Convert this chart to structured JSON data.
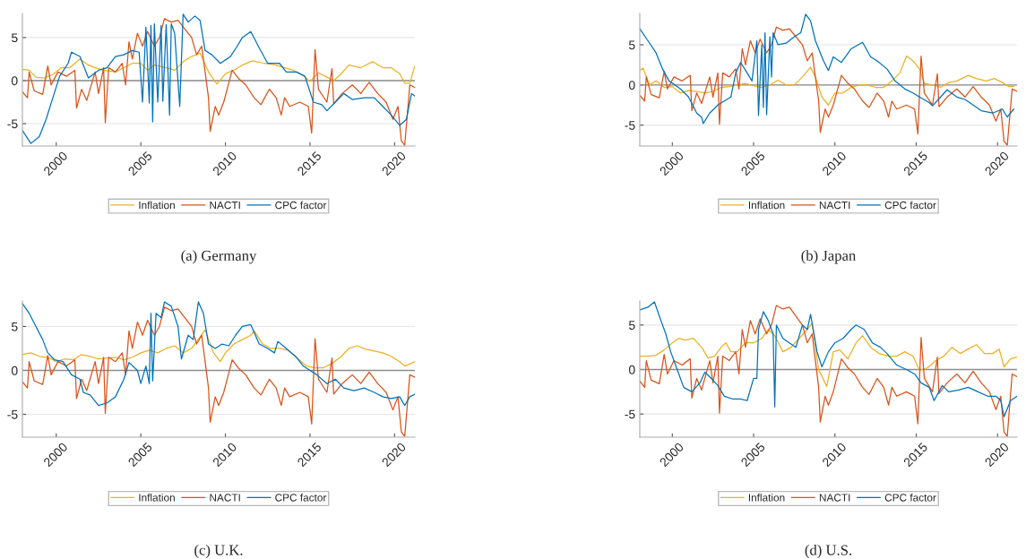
{
  "chart_data": [
    {
      "type": "line",
      "title": "(a) Germany",
      "xlim": [
        1998,
        2021.2
      ],
      "ylim": [
        -7.6,
        7.8
      ],
      "xticks": [
        2000,
        2005,
        2010,
        2015,
        2020
      ],
      "yticks": [
        -5,
        0,
        5
      ],
      "grid": "y",
      "legend": "bottom",
      "ref_lines": [
        {
          "axis": "y",
          "value": 0,
          "color": "#8c8c8c"
        }
      ],
      "series": [
        {
          "name": "Inflation",
          "color": "#edb120",
          "x": [
            1998,
            1998.4,
            1998.8,
            1999.3,
            1999.8,
            2000.3,
            2000.8,
            2001.4,
            2001.9,
            2002.3,
            2002.8,
            2003.5,
            2004.0,
            2004.5,
            2005.0,
            2005.4,
            2005.8,
            2006.5,
            2007.0,
            2007.5,
            2008.0,
            2008.5,
            2009.0,
            2009.5,
            2010.0,
            2010.5,
            2011.0,
            2011.6,
            2012.3,
            2013.0,
            2013.5,
            2014.0,
            2014.6,
            2015.0,
            2015.5,
            2016.0,
            2016.4,
            2016.8,
            2017.3,
            2018.0,
            2018.7,
            2019.3,
            2019.8,
            2020.3,
            2020.6,
            2020.9,
            2021.2
          ],
          "values": [
            1.3,
            1.2,
            0.4,
            0.3,
            0.7,
            1.5,
            1.5,
            2.5,
            1.8,
            1.5,
            1.2,
            1.0,
            1.5,
            2.0,
            2.0,
            1.2,
            1.8,
            1.5,
            1.2,
            2.2,
            2.8,
            3.2,
            1.0,
            -0.4,
            0.8,
            1.2,
            1.8,
            2.3,
            2.0,
            1.8,
            1.5,
            1.2,
            0.6,
            -0.1,
            0.9,
            0.4,
            0.0,
            0.7,
            1.8,
            1.5,
            2.2,
            1.5,
            1.5,
            0.8,
            -0.3,
            -0.3,
            1.7
          ]
        },
        {
          "name": "NACTI",
          "color": "#d95319",
          "x": [
            1998,
            1998.3,
            1998.4,
            1998.7,
            1999.2,
            1999.5,
            1999.7,
            2000.1,
            2000.6,
            2001.1,
            2001.2,
            2001.5,
            2001.8,
            2002.3,
            2002.5,
            2002.8,
            2002.9,
            2003.1,
            2003.5,
            2003.9,
            2004.1,
            2004.3,
            2004.5,
            2004.8,
            2005.1,
            2005.4,
            2005.8,
            2006.1,
            2006.4,
            2006.8,
            2007.2,
            2007.6,
            2008.0,
            2008.3,
            2008.6,
            2008.8,
            2009.0,
            2009.1,
            2009.4,
            2009.6,
            2009.9,
            2010.4,
            2010.8,
            2011.2,
            2011.7,
            2012.1,
            2012.6,
            2013.0,
            2013.3,
            2013.5,
            2013.8,
            2014.4,
            2014.9,
            2015.1,
            2015.3,
            2015.5,
            2016.0,
            2016.3,
            2016.4,
            2016.9,
            2017.5,
            2018.0,
            2018.5,
            2019.0,
            2019.5,
            2019.9,
            2020.2,
            2020.4,
            2020.6,
            2020.9,
            2021.2
          ],
          "values": [
            -1.3,
            -2.0,
            1.0,
            -1.2,
            -1.6,
            1.7,
            -0.5,
            1.0,
            0.5,
            1.2,
            -3.2,
            -1.0,
            -2.3,
            1.0,
            -1.5,
            1.5,
            -4.9,
            1.5,
            1.0,
            2.0,
            -0.5,
            4.5,
            2.5,
            5.5,
            4.0,
            5.7,
            4.0,
            5.0,
            7.2,
            6.8,
            7.0,
            6.0,
            5.0,
            3.0,
            4.0,
            1.0,
            -2.0,
            -5.9,
            -3.0,
            -4.0,
            -2.5,
            1.2,
            0.2,
            -0.5,
            -2.0,
            -2.8,
            -1.0,
            -2.0,
            -4.0,
            -2.0,
            -3.0,
            -2.5,
            -3.0,
            -6.1,
            3.6,
            -1.0,
            -2.5,
            1.4,
            -2.7,
            -1.5,
            -0.5,
            -1.5,
            -0.2,
            -1.5,
            -2.5,
            -4.5,
            -3.0,
            -7.0,
            -7.5,
            -0.5,
            -0.8
          ]
        },
        {
          "name": "CPC factor",
          "color": "#0072bd",
          "x": [
            1998,
            1998.5,
            1999.0,
            1999.4,
            1999.8,
            2000.2,
            2000.7,
            2000.9,
            2001.4,
            2001.9,
            2002.5,
            2003.0,
            2003.5,
            2004.0,
            2004.5,
            2004.9,
            2005.1,
            2005.3,
            2005.5,
            2005.6,
            2005.7,
            2005.8,
            2006.0,
            2006.2,
            2006.3,
            2006.5,
            2006.7,
            2006.8,
            2007.0,
            2007.3,
            2007.5,
            2007.8,
            2008.2,
            2008.5,
            2008.8,
            2009.2,
            2009.7,
            2010.3,
            2010.7,
            2011.0,
            2011.5,
            2012.0,
            2012.5,
            2013.2,
            2013.6,
            2014.2,
            2014.7,
            2015.2,
            2015.7,
            2016.0,
            2016.5,
            2017.0,
            2017.5,
            2018.2,
            2018.8,
            2019.3,
            2019.8,
            2020.3,
            2020.7,
            2021.0,
            2021.2
          ],
          "values": [
            -5.8,
            -7.3,
            -6.5,
            -4.5,
            -2.0,
            0.5,
            2.0,
            3.3,
            2.8,
            0.3,
            1.2,
            1.5,
            2.8,
            3.0,
            3.5,
            3.3,
            -2.5,
            6.2,
            -2.6,
            6.4,
            -4.8,
            6.6,
            -2.5,
            6.4,
            -2.4,
            6.5,
            -4.0,
            6.6,
            5.5,
            -3.0,
            7.7,
            6.8,
            7.5,
            7.0,
            3.5,
            3.0,
            2.0,
            2.8,
            4.0,
            5.0,
            5.7,
            3.8,
            2.0,
            2.0,
            1.0,
            1.0,
            0.5,
            -2.5,
            -2.8,
            -3.5,
            -2.5,
            -1.5,
            -2.2,
            -2.0,
            -2.0,
            -3.0,
            -4.0,
            -5.2,
            -4.5,
            -1.5,
            -1.8
          ]
        }
      ]
    },
    {
      "type": "line",
      "title": "(b) Japan",
      "xlim": [
        1998,
        2021.2
      ],
      "ylim": [
        -7.6,
        8.9
      ],
      "xticks": [
        2000,
        2005,
        2010,
        2015,
        2020
      ],
      "yticks": [
        -5,
        0,
        5
      ],
      "grid": "y",
      "legend": "bottom",
      "ref_lines": [
        {
          "axis": "y",
          "value": 0,
          "color": "#8c8c8c"
        }
      ],
      "series": [
        {
          "name": "Inflation",
          "color": "#edb120",
          "x": [
            1998,
            1998.2,
            1998.6,
            1999.0,
            1999.5,
            2000.0,
            2000.5,
            2001.0,
            2001.5,
            2002.0,
            2002.5,
            2003.0,
            2003.5,
            2004.0,
            2004.5,
            2005.0,
            2005.5,
            2006.0,
            2006.5,
            2007.0,
            2007.5,
            2008.0,
            2008.5,
            2008.8,
            2009.2,
            2009.6,
            2010.0,
            2010.5,
            2011.0,
            2011.5,
            2012.0,
            2012.5,
            2013.0,
            2013.5,
            2014.0,
            2014.4,
            2014.8,
            2015.2,
            2015.5,
            2016.0,
            2016.5,
            2017.0,
            2017.5,
            2018.2,
            2018.7,
            2019.3,
            2019.8,
            2020.3,
            2020.7,
            2021.0
          ],
          "values": [
            1.8,
            2.1,
            0.0,
            0.5,
            -0.3,
            -0.2,
            -1.0,
            -0.7,
            -0.8,
            -1.0,
            -0.8,
            -0.3,
            -0.2,
            0.0,
            0.2,
            -0.1,
            -0.3,
            0.0,
            0.6,
            0.0,
            0.0,
            1.0,
            2.2,
            1.0,
            -1.5,
            -2.5,
            -1.0,
            -1.0,
            -0.3,
            0.0,
            0.0,
            -0.3,
            -0.3,
            0.5,
            1.5,
            3.6,
            3.0,
            2.0,
            0.2,
            0.0,
            -0.3,
            0.3,
            0.5,
            1.2,
            0.8,
            0.5,
            0.8,
            0.3,
            -0.2,
            -0.2
          ]
        },
        {
          "name": "NACTI",
          "color": "#d95319",
          "x": [
            1998,
            1998.3,
            1998.4,
            1998.7,
            1999.2,
            1999.5,
            1999.7,
            2000.1,
            2000.6,
            2001.1,
            2001.2,
            2001.5,
            2001.8,
            2002.3,
            2002.5,
            2002.8,
            2002.9,
            2003.1,
            2003.5,
            2003.9,
            2004.1,
            2004.3,
            2004.5,
            2004.8,
            2005.1,
            2005.4,
            2005.8,
            2006.1,
            2006.4,
            2006.8,
            2007.2,
            2007.6,
            2008.0,
            2008.3,
            2008.6,
            2008.8,
            2009.0,
            2009.1,
            2009.4,
            2009.6,
            2009.9,
            2010.4,
            2010.8,
            2011.2,
            2011.7,
            2012.1,
            2012.6,
            2013.0,
            2013.3,
            2013.5,
            2013.8,
            2014.4,
            2014.9,
            2015.1,
            2015.3,
            2015.5,
            2016.0,
            2016.3,
            2016.4,
            2016.9,
            2017.5,
            2018.0,
            2018.5,
            2019.0,
            2019.5,
            2019.9,
            2020.2,
            2020.4,
            2020.6,
            2020.9,
            2021.2
          ],
          "values": [
            -1.3,
            -2.0,
            1.0,
            -1.2,
            -1.6,
            1.7,
            -0.5,
            1.0,
            0.5,
            1.2,
            -3.2,
            -1.0,
            -2.3,
            1.0,
            -1.5,
            1.5,
            -4.9,
            1.5,
            1.0,
            2.0,
            -0.5,
            4.5,
            2.5,
            5.5,
            4.0,
            5.7,
            4.0,
            5.0,
            7.2,
            6.8,
            7.0,
            6.0,
            5.0,
            3.0,
            4.0,
            1.0,
            -2.0,
            -5.9,
            -3.0,
            -4.0,
            -2.5,
            1.2,
            0.2,
            -0.5,
            -2.0,
            -2.8,
            -1.0,
            -2.0,
            -4.0,
            -2.0,
            -3.0,
            -2.5,
            -3.0,
            -6.1,
            3.6,
            -1.0,
            -2.5,
            1.4,
            -2.7,
            -1.5,
            -0.5,
            -1.5,
            -0.2,
            -1.5,
            -2.5,
            -4.5,
            -3.0,
            -7.0,
            -7.5,
            -0.5,
            -0.8
          ]
        },
        {
          "name": "CPC factor",
          "color": "#0072bd",
          "x": [
            1998,
            1998.5,
            1999.0,
            1999.4,
            1999.8,
            2000.5,
            2001.0,
            2001.5,
            2001.8,
            2001.9,
            2002.3,
            2002.8,
            2003.2,
            2003.6,
            2003.9,
            2004.2,
            2004.6,
            2004.9,
            2005.2,
            2005.3,
            2005.5,
            2005.6,
            2005.7,
            2005.8,
            2006.0,
            2006.1,
            2006.2,
            2006.5,
            2007.0,
            2007.5,
            2007.9,
            2008.2,
            2008.5,
            2008.8,
            2009.3,
            2009.6,
            2009.9,
            2010.4,
            2011.0,
            2011.7,
            2012.2,
            2012.6,
            2013.2,
            2013.7,
            2014.3,
            2014.8,
            2015.2,
            2015.8,
            2016.0,
            2016.5,
            2016.9,
            2017.5,
            2018.0,
            2018.5,
            2019.0,
            2019.7,
            2020.3,
            2020.6,
            2021.0
          ],
          "values": [
            7.0,
            5.5,
            4.0,
            2.0,
            0.5,
            -0.5,
            -1.5,
            -3.5,
            -4.0,
            -4.8,
            -3.5,
            -2.5,
            -2.0,
            -1.5,
            1.5,
            2.8,
            1.5,
            0.5,
            5.5,
            -3.8,
            5.0,
            -2.8,
            6.5,
            -3.7,
            6.0,
            1.0,
            6.5,
            5.0,
            5.2,
            6.0,
            6.5,
            8.8,
            8.0,
            5.5,
            3.0,
            1.8,
            3.5,
            2.8,
            4.5,
            5.3,
            3.5,
            3.0,
            2.0,
            0.5,
            -0.5,
            -1.0,
            -1.5,
            -2.2,
            -2.6,
            -1.5,
            -0.6,
            -1.5,
            -1.8,
            -2.5,
            -3.2,
            -3.5,
            -3.0,
            -4.0,
            -3.0
          ]
        }
      ]
    },
    {
      "type": "line",
      "title": "(c) U.K.",
      "xlim": [
        1998,
        2021.2
      ],
      "ylim": [
        -7.6,
        7.9
      ],
      "xticks": [
        2000,
        2005,
        2010,
        2015,
        2020
      ],
      "yticks": [
        -5,
        0,
        5
      ],
      "grid": "y",
      "legend": "bottom",
      "ref_lines": [
        {
          "axis": "y",
          "value": 0,
          "color": "#8c8c8c"
        }
      ],
      "series": [
        {
          "name": "Inflation",
          "color": "#edb120",
          "x": [
            1998,
            1998.5,
            1999.0,
            1999.5,
            2000.0,
            2000.5,
            2001.0,
            2001.5,
            2002.0,
            2002.5,
            2003.0,
            2003.5,
            2004.0,
            2004.5,
            2005.0,
            2005.5,
            2006.0,
            2006.5,
            2007.0,
            2007.5,
            2008.0,
            2008.5,
            2008.8,
            2009.3,
            2009.7,
            2010.0,
            2010.5,
            2011.0,
            2011.5,
            2011.7,
            2012.2,
            2012.7,
            2013.2,
            2013.7,
            2014.3,
            2014.8,
            2015.3,
            2015.8,
            2016.3,
            2016.8,
            2017.3,
            2017.8,
            2018.3,
            2018.8,
            2019.3,
            2019.8,
            2020.3,
            2020.6,
            2021.0,
            2021.2
          ],
          "values": [
            1.8,
            2.0,
            1.6,
            1.5,
            1.0,
            1.3,
            1.2,
            1.8,
            1.6,
            1.3,
            1.4,
            1.5,
            1.2,
            1.5,
            2.0,
            2.3,
            2.0,
            2.5,
            2.8,
            2.0,
            2.5,
            3.8,
            4.6,
            2.0,
            1.0,
            2.0,
            3.0,
            3.5,
            4.0,
            4.5,
            3.0,
            2.5,
            2.5,
            2.3,
            1.3,
            0.5,
            0.3,
            0.3,
            0.8,
            1.5,
            2.5,
            2.8,
            2.4,
            2.2,
            2.0,
            1.6,
            1.0,
            0.5,
            0.8,
            1.0
          ]
        },
        {
          "name": "NACTI",
          "color": "#d95319",
          "x": [
            1998,
            1998.3,
            1998.4,
            1998.7,
            1999.2,
            1999.5,
            1999.7,
            2000.1,
            2000.6,
            2001.1,
            2001.2,
            2001.5,
            2001.8,
            2002.3,
            2002.5,
            2002.8,
            2002.9,
            2003.1,
            2003.5,
            2003.9,
            2004.1,
            2004.3,
            2004.5,
            2004.8,
            2005.1,
            2005.4,
            2005.8,
            2006.1,
            2006.4,
            2006.8,
            2007.2,
            2007.6,
            2008.0,
            2008.3,
            2008.6,
            2008.8,
            2009.0,
            2009.1,
            2009.4,
            2009.6,
            2009.9,
            2010.4,
            2010.8,
            2011.2,
            2011.7,
            2012.1,
            2012.6,
            2013.0,
            2013.3,
            2013.5,
            2013.8,
            2014.4,
            2014.9,
            2015.1,
            2015.3,
            2015.5,
            2016.0,
            2016.3,
            2016.4,
            2016.9,
            2017.5,
            2018.0,
            2018.5,
            2019.0,
            2019.5,
            2019.9,
            2020.2,
            2020.4,
            2020.6,
            2020.9,
            2021.2
          ],
          "values": [
            -1.3,
            -2.0,
            1.0,
            -1.2,
            -1.6,
            1.7,
            -0.5,
            1.0,
            0.5,
            1.2,
            -3.2,
            -1.0,
            -2.3,
            1.0,
            -1.5,
            1.5,
            -4.9,
            1.5,
            1.0,
            2.0,
            -0.5,
            4.5,
            2.5,
            5.5,
            4.0,
            5.7,
            4.0,
            5.0,
            7.2,
            6.8,
            7.0,
            6.0,
            5.0,
            3.0,
            4.0,
            1.0,
            -2.0,
            -5.9,
            -3.0,
            -4.0,
            -2.5,
            1.2,
            0.2,
            -0.5,
            -2.0,
            -2.8,
            -1.0,
            -2.0,
            -4.0,
            -2.0,
            -3.0,
            -2.5,
            -3.0,
            -6.1,
            3.6,
            -1.0,
            -2.5,
            1.4,
            -2.7,
            -1.5,
            -0.5,
            -1.5,
            -0.2,
            -1.5,
            -2.5,
            -4.5,
            -3.0,
            -7.0,
            -7.5,
            -0.5,
            -0.8
          ]
        },
        {
          "name": "CPC factor",
          "color": "#0072bd",
          "x": [
            1998,
            1998.4,
            1998.8,
            1999.2,
            1999.5,
            1999.9,
            2000.4,
            2000.9,
            2001.4,
            2001.6,
            2002.0,
            2002.5,
            2003.0,
            2003.5,
            2004.0,
            2004.3,
            2004.8,
            2005.0,
            2005.3,
            2005.5,
            2005.6,
            2005.7,
            2005.9,
            2006.2,
            2006.4,
            2006.8,
            2007.2,
            2007.4,
            2007.8,
            2008.1,
            2008.4,
            2008.7,
            2009.0,
            2009.4,
            2009.8,
            2010.2,
            2010.6,
            2011.0,
            2011.5,
            2012.0,
            2012.5,
            2012.9,
            2013.1,
            2013.6,
            2014.2,
            2014.6,
            2015.0,
            2015.4,
            2016.0,
            2016.5,
            2017.0,
            2017.6,
            2018.2,
            2018.8,
            2019.3,
            2019.8,
            2020.3,
            2020.6,
            2020.9,
            2021.2
          ],
          "values": [
            7.6,
            6.5,
            5.0,
            3.5,
            2.0,
            1.2,
            1.0,
            -0.5,
            -1.0,
            -2.5,
            -2.8,
            -4.0,
            -3.7,
            -3.0,
            -1.0,
            0.9,
            0.0,
            -1.5,
            0.5,
            -1.5,
            6.5,
            -1.2,
            6.5,
            6.0,
            7.8,
            7.3,
            5.0,
            1.3,
            4.0,
            3.5,
            7.8,
            6.5,
            3.0,
            2.5,
            3.0,
            2.8,
            4.0,
            5.0,
            5.2,
            3.0,
            2.5,
            2.0,
            3.3,
            2.5,
            1.5,
            0.5,
            0.0,
            -0.5,
            -1.5,
            -1.0,
            -2.0,
            -2.3,
            -2.0,
            -2.5,
            -3.0,
            -3.2,
            -3.0,
            -4.0,
            -3.0,
            -2.7
          ]
        }
      ]
    },
    {
      "type": "line",
      "title": "(d) U.S.",
      "xlim": [
        1998,
        2021.2
      ],
      "ylim": [
        -7.6,
        7.7
      ],
      "xticks": [
        2000,
        2005,
        2010,
        2015,
        2020
      ],
      "yticks": [
        -5,
        0,
        5
      ],
      "grid": "y",
      "legend": "bottom",
      "ref_lines": [
        {
          "axis": "y",
          "value": 0,
          "color": "#8c8c8c"
        }
      ],
      "series": [
        {
          "name": "Inflation",
          "color": "#edb120",
          "x": [
            1998,
            1998.5,
            1999.0,
            1999.5,
            2000.0,
            2000.4,
            2000.8,
            2001.3,
            2001.8,
            2002.2,
            2002.6,
            2003.0,
            2003.3,
            2003.6,
            2004.0,
            2004.5,
            2005.0,
            2005.5,
            2005.9,
            2006.3,
            2006.8,
            2007.3,
            2007.8,
            2008.3,
            2008.6,
            2009.0,
            2009.5,
            2009.9,
            2010.3,
            2010.8,
            2011.3,
            2011.7,
            2012.2,
            2012.7,
            2013.3,
            2013.8,
            2014.3,
            2014.8,
            2015.2,
            2015.7,
            2016.2,
            2016.7,
            2017.2,
            2017.7,
            2018.2,
            2018.7,
            2019.2,
            2019.7,
            2020.1,
            2020.4,
            2020.8,
            2021.2
          ],
          "values": [
            1.5,
            1.5,
            1.6,
            2.2,
            3.0,
            3.5,
            3.3,
            3.5,
            2.5,
            1.3,
            1.5,
            2.5,
            3.0,
            2.0,
            2.0,
            3.0,
            3.0,
            3.5,
            4.5,
            3.8,
            2.0,
            2.5,
            3.5,
            4.5,
            5.2,
            0.0,
            -1.9,
            2.0,
            2.2,
            1.2,
            3.0,
            3.8,
            2.5,
            1.8,
            1.5,
            1.5,
            2.0,
            1.5,
            -0.1,
            0.2,
            1.0,
            1.5,
            2.5,
            1.8,
            2.3,
            2.8,
            1.8,
            1.8,
            2.3,
            0.3,
            1.2,
            1.4
          ]
        },
        {
          "name": "NACTI",
          "color": "#d95319",
          "x": [
            1998,
            1998.3,
            1998.4,
            1998.7,
            1999.2,
            1999.5,
            1999.7,
            2000.1,
            2000.6,
            2001.1,
            2001.2,
            2001.5,
            2001.8,
            2002.3,
            2002.5,
            2002.8,
            2002.9,
            2003.1,
            2003.5,
            2003.9,
            2004.1,
            2004.3,
            2004.5,
            2004.8,
            2005.1,
            2005.4,
            2005.8,
            2006.1,
            2006.4,
            2006.8,
            2007.2,
            2007.6,
            2008.0,
            2008.3,
            2008.6,
            2008.8,
            2009.0,
            2009.1,
            2009.4,
            2009.6,
            2009.9,
            2010.4,
            2010.8,
            2011.2,
            2011.7,
            2012.1,
            2012.6,
            2013.0,
            2013.3,
            2013.5,
            2013.8,
            2014.4,
            2014.9,
            2015.1,
            2015.3,
            2015.5,
            2016.0,
            2016.3,
            2016.4,
            2016.9,
            2017.5,
            2018.0,
            2018.5,
            2019.0,
            2019.5,
            2019.9,
            2020.2,
            2020.4,
            2020.6,
            2020.9,
            2021.2
          ],
          "values": [
            -1.3,
            -2.0,
            1.0,
            -1.2,
            -1.6,
            1.7,
            -0.5,
            1.0,
            0.5,
            1.2,
            -3.2,
            -1.0,
            -2.3,
            1.0,
            -1.5,
            1.5,
            -4.9,
            1.5,
            1.0,
            2.0,
            -0.5,
            4.5,
            2.5,
            5.5,
            4.0,
            5.7,
            4.0,
            5.0,
            7.2,
            6.8,
            7.0,
            6.0,
            5.0,
            3.0,
            4.0,
            1.0,
            -2.0,
            -5.9,
            -3.0,
            -4.0,
            -2.5,
            1.2,
            0.2,
            -0.5,
            -2.0,
            -2.8,
            -1.0,
            -2.0,
            -4.0,
            -2.0,
            -3.0,
            -2.5,
            -3.0,
            -6.1,
            3.6,
            -1.0,
            -2.5,
            1.4,
            -2.7,
            -1.5,
            -0.5,
            -1.5,
            -0.2,
            -1.5,
            -2.5,
            -4.5,
            -3.0,
            -7.0,
            -7.5,
            -0.5,
            -0.8
          ]
        },
        {
          "name": "CPC factor",
          "color": "#0072bd",
          "x": [
            1998,
            1998.5,
            1998.9,
            1999.3,
            1999.6,
            1999.9,
            2000.3,
            2000.7,
            2001.2,
            2001.7,
            2002.0,
            2002.4,
            2002.8,
            2003.2,
            2003.7,
            2004.2,
            2004.6,
            2005.0,
            2005.2,
            2005.3,
            2005.6,
            2005.9,
            2006.2,
            2006.3,
            2006.4,
            2006.8,
            2007.2,
            2007.6,
            2008.0,
            2008.3,
            2008.5,
            2008.9,
            2009.2,
            2009.6,
            2010.0,
            2010.5,
            2011.0,
            2011.3,
            2011.8,
            2012.3,
            2012.8,
            2013.2,
            2013.8,
            2014.4,
            2014.9,
            2015.3,
            2015.8,
            2016.1,
            2016.6,
            2017.0,
            2017.6,
            2018.2,
            2018.8,
            2019.4,
            2019.9,
            2020.2,
            2020.4,
            2020.8,
            2021.2
          ],
          "values": [
            6.7,
            7.0,
            7.6,
            5.5,
            4.0,
            2.0,
            0.0,
            -2.0,
            -2.5,
            -1.5,
            -0.3,
            -1.0,
            -1.8,
            -3.0,
            -3.3,
            -3.3,
            -3.5,
            -1.0,
            -1.0,
            4.5,
            6.5,
            5.5,
            4.0,
            -4.2,
            5.0,
            3.5,
            3.0,
            2.5,
            5.0,
            4.5,
            6.2,
            2.0,
            0.3,
            2.0,
            3.0,
            3.5,
            4.5,
            5.0,
            4.5,
            3.0,
            2.5,
            1.8,
            0.5,
            0.0,
            -0.5,
            -1.5,
            -2.0,
            -3.5,
            -1.8,
            -2.5,
            -2.3,
            -2.0,
            -2.5,
            -3.0,
            -3.0,
            -3.5,
            -5.3,
            -3.5,
            -3.0
          ]
        }
      ]
    }
  ]
}
